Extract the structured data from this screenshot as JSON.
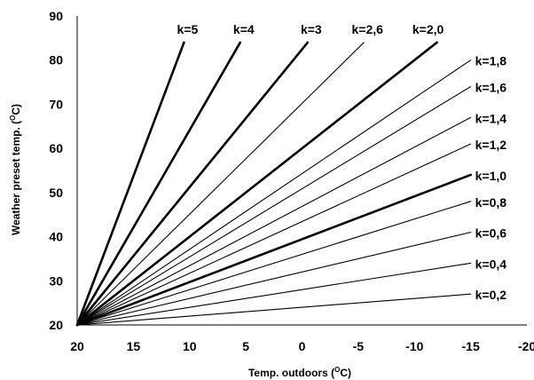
{
  "chart_data": {
    "type": "line",
    "title": "",
    "xlabel": "Temp. outdoors (°C)",
    "xlabel_parts": [
      "Temp. outdoors (",
      "O",
      "C)"
    ],
    "ylabel": "Weather preset temp. (°C)",
    "ylabel_parts": [
      "Weather preset temp. (",
      "O",
      "C)"
    ],
    "xlim": [
      20,
      -20
    ],
    "ylim": [
      20,
      90
    ],
    "x_reversed": true,
    "x_ticks": [
      20,
      15,
      10,
      5,
      0,
      -5,
      -10,
      -15,
      -20
    ],
    "x_tick_labels": [
      "20",
      "15",
      "10",
      "5",
      "0",
      "-5",
      "-10",
      "-15",
      "-20"
    ],
    "y_ticks": [
      20,
      30,
      40,
      50,
      60,
      70,
      80,
      90
    ],
    "y_tick_labels": [
      "20",
      "30",
      "40",
      "50",
      "60",
      "70",
      "80",
      "90"
    ],
    "grid": false,
    "legend": "none",
    "origin": {
      "x": 20,
      "y": 20
    },
    "series": [
      {
        "name": "k=0,2",
        "k": 0.2,
        "label": "k=0,2",
        "bold": false,
        "end": {
          "x": -15,
          "y": 27
        }
      },
      {
        "name": "k=0,4",
        "k": 0.4,
        "label": "k=0,4",
        "bold": false,
        "end": {
          "x": -15,
          "y": 34
        }
      },
      {
        "name": "k=0,6",
        "k": 0.6,
        "label": "k=0,6",
        "bold": false,
        "end": {
          "x": -15,
          "y": 41
        }
      },
      {
        "name": "k=0,8",
        "k": 0.8,
        "label": "k=0,8",
        "bold": false,
        "end": {
          "x": -15,
          "y": 48
        }
      },
      {
        "name": "k=1,0",
        "k": 1.0,
        "label": "k=1,0",
        "bold": true,
        "end": {
          "x": -15,
          "y": 54
        }
      },
      {
        "name": "k=1,2",
        "k": 1.2,
        "label": "k=1,2",
        "bold": false,
        "end": {
          "x": -15,
          "y": 61
        }
      },
      {
        "name": "k=1,4",
        "k": 1.4,
        "label": "k=1,4",
        "bold": false,
        "end": {
          "x": -15,
          "y": 67
        }
      },
      {
        "name": "k=1,6",
        "k": 1.6,
        "label": "k=1,6",
        "bold": false,
        "end": {
          "x": -15,
          "y": 74
        }
      },
      {
        "name": "k=1,8",
        "k": 1.8,
        "label": "k=1,8",
        "bold": false,
        "end": {
          "x": -15,
          "y": 80
        }
      },
      {
        "name": "k=2,0",
        "k": 2.0,
        "label": "k=2,0",
        "bold": true,
        "end": {
          "x": -12,
          "y": 84
        }
      },
      {
        "name": "k=2,6",
        "k": 2.6,
        "label": "k=2,6",
        "bold": false,
        "end": {
          "x": -5.5,
          "y": 84
        }
      },
      {
        "name": "k=3",
        "k": 3.0,
        "label": "k=3",
        "bold": true,
        "end": {
          "x": -0.5,
          "y": 84
        }
      },
      {
        "name": "k=4",
        "k": 4.0,
        "label": "k=4",
        "bold": true,
        "end": {
          "x": 5.5,
          "y": 84
        }
      },
      {
        "name": "k=5",
        "k": 5.0,
        "label": "k=5",
        "bold": true,
        "end": {
          "x": 10.5,
          "y": 84
        }
      }
    ]
  }
}
